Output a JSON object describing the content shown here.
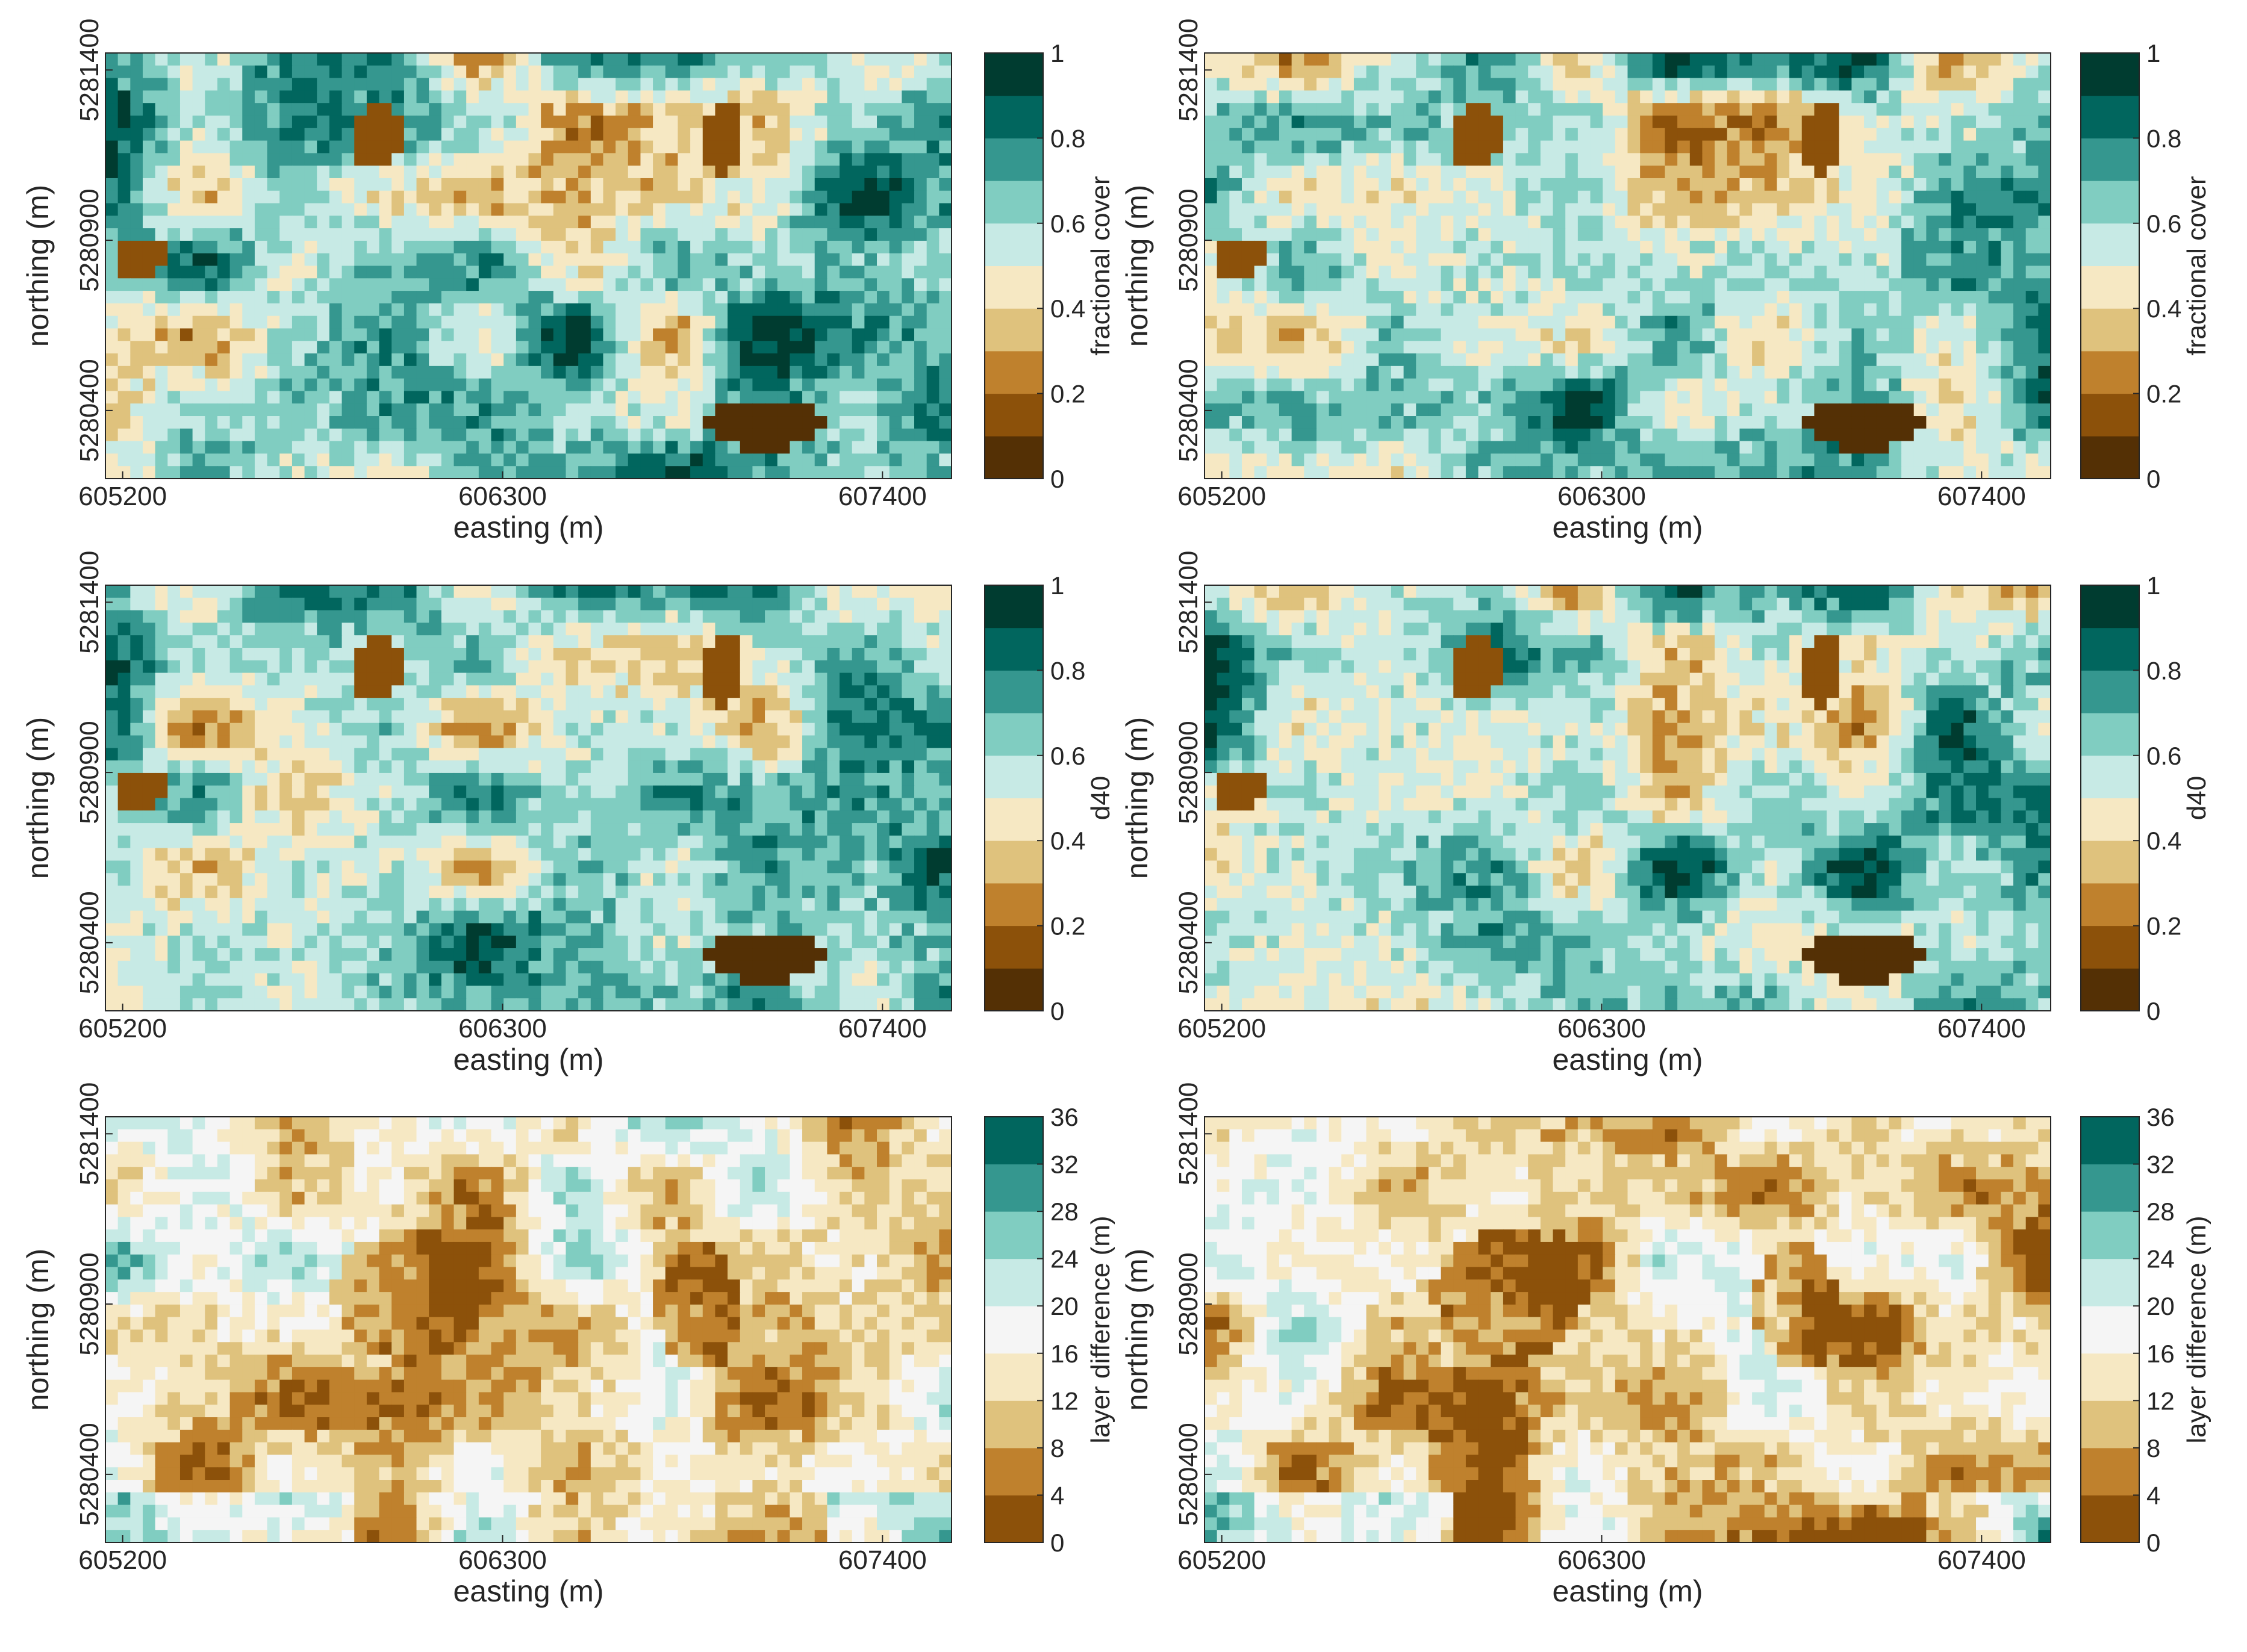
{
  "figure": {
    "colors": {
      "brbg": [
        "#543005",
        "#8c510a",
        "#bf812d",
        "#dfc27d",
        "#f6e8c3",
        "#c7eae5",
        "#80cdc1",
        "#35978f",
        "#01665e",
        "#003c30"
      ],
      "diff": [
        "#8c510a",
        "#bf812d",
        "#dfc27d",
        "#f6e8c3",
        "#f5f5f5",
        "#c7eae5",
        "#80cdc1",
        "#35978f",
        "#01665e"
      ]
    }
  },
  "chart_data": [
    {
      "type": "heatmap",
      "panel": "row1-left",
      "xlabel": "easting (m)",
      "ylabel": "northing (m)",
      "x_ticks": [
        "605200",
        "606300",
        "607400"
      ],
      "y_ticks": [
        "5281400",
        "5280900",
        "5280400"
      ],
      "xlim": [
        605150,
        607600
      ],
      "ylim": [
        5280200,
        5281450
      ],
      "colorbar": {
        "label": "fractional cover",
        "range": [
          0,
          1
        ],
        "ticks": [
          "0",
          "0.2",
          "0.4",
          "0.6",
          "0.8",
          "1"
        ],
        "levels": 10
      },
      "dominant_value": 0.65
    },
    {
      "type": "heatmap",
      "panel": "row1-right",
      "xlabel": "easting (m)",
      "ylabel": "northing (m)",
      "x_ticks": [
        "605200",
        "606300",
        "607400"
      ],
      "y_ticks": [
        "5281400",
        "5280900",
        "5280400"
      ],
      "xlim": [
        605150,
        607600
      ],
      "ylim": [
        5280200,
        5281450
      ],
      "colorbar": {
        "label": "fractional cover",
        "range": [
          0,
          1
        ],
        "ticks": [
          "0",
          "0.2",
          "0.4",
          "0.6",
          "0.8",
          "1"
        ],
        "levels": 10
      },
      "dominant_value": 0.62
    },
    {
      "type": "heatmap",
      "panel": "row2-left",
      "xlabel": "easting (m)",
      "ylabel": "northing (m)",
      "x_ticks": [
        "605200",
        "606300",
        "607400"
      ],
      "y_ticks": [
        "5281400",
        "5280900",
        "5280400"
      ],
      "xlim": [
        605150,
        607600
      ],
      "ylim": [
        5280200,
        5281450
      ],
      "colorbar": {
        "label": "d40",
        "range": [
          0,
          1
        ],
        "ticks": [
          "0",
          "0.2",
          "0.4",
          "0.6",
          "0.8",
          "1"
        ],
        "levels": 10
      },
      "dominant_value": 0.62
    },
    {
      "type": "heatmap",
      "panel": "row2-right",
      "xlabel": "easting (m)",
      "ylabel": "northing (m)",
      "x_ticks": [
        "605200",
        "606300",
        "607400"
      ],
      "y_ticks": [
        "5281400",
        "5280900",
        "5280400"
      ],
      "xlim": [
        605150,
        607600
      ],
      "ylim": [
        5280200,
        5281450
      ],
      "colorbar": {
        "label": "d40",
        "range": [
          0,
          1
        ],
        "ticks": [
          "0",
          "0.2",
          "0.4",
          "0.6",
          "0.8",
          "1"
        ],
        "levels": 10
      },
      "dominant_value": 0.6
    },
    {
      "type": "heatmap",
      "panel": "row3-left",
      "xlabel": "easting (m)",
      "ylabel": "northing (m)",
      "x_ticks": [
        "605200",
        "606300",
        "607400"
      ],
      "y_ticks": [
        "5281400",
        "5280900",
        "5280400"
      ],
      "xlim": [
        605150,
        607600
      ],
      "ylim": [
        5280200,
        5281450
      ],
      "colorbar": {
        "label": "layer difference (m)",
        "range": [
          0,
          36
        ],
        "ticks": [
          "0",
          "4",
          "8",
          "12",
          "16",
          "20",
          "24",
          "28",
          "32",
          "36"
        ],
        "levels": 9
      },
      "dominant_value": 14
    },
    {
      "type": "heatmap",
      "panel": "row3-right",
      "xlabel": "easting (m)",
      "ylabel": "northing (m)",
      "x_ticks": [
        "605200",
        "606300",
        "607400"
      ],
      "y_ticks": [
        "5281400",
        "5280900",
        "5280400"
      ],
      "xlim": [
        605150,
        607600
      ],
      "ylim": [
        5280200,
        5281450
      ],
      "colorbar": {
        "label": "layer difference (m)",
        "range": [
          0,
          36
        ],
        "ticks": [
          "0",
          "4",
          "8",
          "12",
          "16",
          "20",
          "24",
          "28",
          "32",
          "36"
        ],
        "levels": 9
      },
      "dominant_value": 13
    }
  ]
}
